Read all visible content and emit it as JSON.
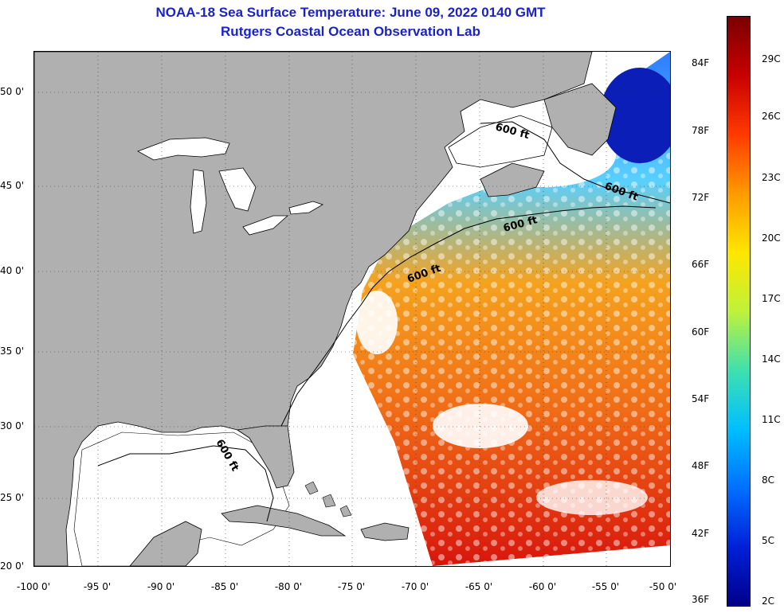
{
  "title": {
    "line1": "NOAA-18 Sea Surface Temperature:  June 09, 2022 0140 GMT",
    "line2": "Rutgers Coastal Ocean Observation Lab"
  },
  "map": {
    "lat_labels": [
      "50 0'",
      "45 0'",
      "40 0'",
      "35 0'",
      "30 0'",
      "25 0'",
      "20 0'"
    ],
    "lon_labels": [
      "-100 0'",
      "-95 0'",
      "-90 0'",
      "-85 0'",
      "-80 0'",
      "-75 0'",
      "-70 0'",
      "-65 0'",
      "-60 0'",
      "-55 0'",
      "-50 0'"
    ],
    "contour_labels": [
      "600 ft",
      "600 ft",
      "600 ft",
      "600 ft",
      "600 ft"
    ],
    "colors": {
      "land": "#b0b0b0",
      "cloud": "#ffffff",
      "water_cold": "#1f3cff",
      "water_warm": "#f28a1e"
    }
  },
  "colorbar": {
    "fahrenheit": [
      "84F",
      "78F",
      "72F",
      "66F",
      "60F",
      "54F",
      "48F",
      "42F",
      "36F"
    ],
    "celsius": [
      "29C",
      "26C",
      "23C",
      "20C",
      "17C",
      "14C",
      "11C",
      "8C",
      "5C",
      "2C"
    ],
    "gradient": [
      "#7a0000",
      "#c80000",
      "#ff3a00",
      "#ff9a00",
      "#ffe600",
      "#bff23a",
      "#3fe0ae",
      "#00bfff",
      "#0070ff",
      "#0020d8",
      "#00008a"
    ]
  }
}
